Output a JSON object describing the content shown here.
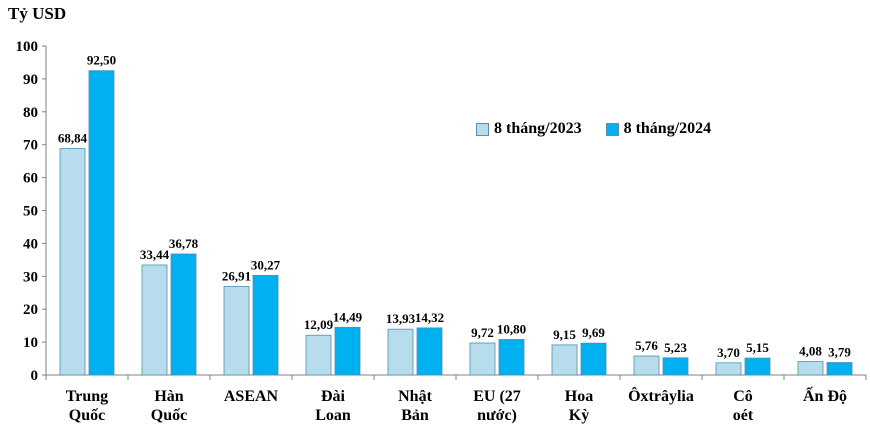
{
  "chart_data": {
    "type": "bar",
    "ylabel": "Tỷ USD",
    "ylim": [
      0,
      100
    ],
    "yticks": [
      0,
      10,
      20,
      30,
      40,
      50,
      60,
      70,
      80,
      90,
      100
    ],
    "categories": [
      [
        "Trung",
        "Quốc"
      ],
      [
        "Hàn",
        "Quốc"
      ],
      [
        "ASEAN"
      ],
      [
        "Đài",
        "Loan"
      ],
      [
        "Nhật",
        "Bản"
      ],
      [
        "EU (27",
        "nước)"
      ],
      [
        "Hoa",
        "Kỳ"
      ],
      [
        "Ôxtrâylia"
      ],
      [
        "Cô",
        "oét"
      ],
      [
        "Ấn Độ"
      ]
    ],
    "series": [
      {
        "name": "8 tháng/2023",
        "color": "#b7dcec",
        "values": [
          68.84,
          33.44,
          26.91,
          12.09,
          13.93,
          9.72,
          9.15,
          5.76,
          3.7,
          4.08
        ],
        "labels": [
          "68,84",
          "33,44",
          "26,91",
          "12,09",
          "13,93",
          "9,72",
          "9,15",
          "5,76",
          "3,70",
          "4,08"
        ]
      },
      {
        "name": "8 tháng/2024",
        "color": "#00b0f0",
        "values": [
          92.5,
          36.78,
          30.27,
          14.49,
          14.32,
          10.8,
          9.69,
          5.23,
          5.15,
          3.79
        ],
        "labels": [
          "92,50",
          "36,78",
          "30,27",
          "14,49",
          "14,32",
          "10,80",
          "9,69",
          "5,23",
          "5,15",
          "3,79"
        ]
      }
    ],
    "legend_position": "top-right",
    "grid": false
  }
}
